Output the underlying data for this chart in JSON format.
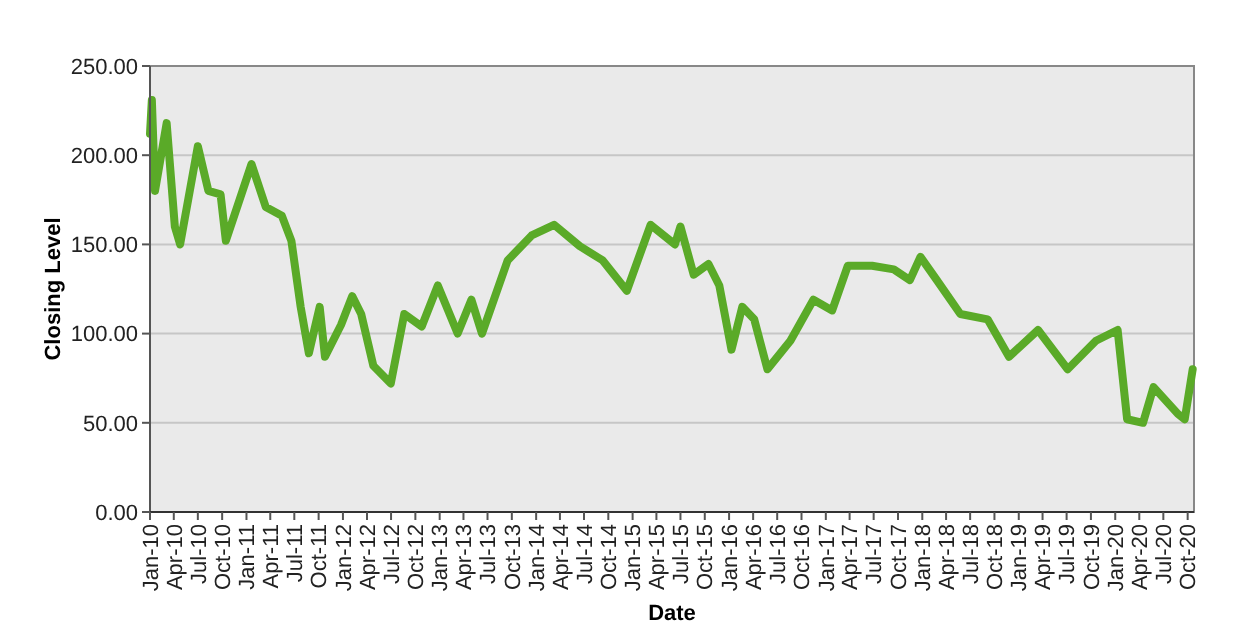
{
  "chart_data": {
    "type": "line",
    "xlabel": "Date",
    "ylabel": "Closing Level",
    "x": [
      "2010-01-01",
      "2010-01-08",
      "2010-01-20",
      "2010-03-05",
      "2010-04-05",
      "2010-04-25",
      "2010-07-01",
      "2010-08-10",
      "2010-09-25",
      "2010-10-15",
      "2011-01-20",
      "2011-03-15",
      "2011-05-15",
      "2011-06-20",
      "2011-07-25",
      "2011-08-25",
      "2011-10-05",
      "2011-10-25",
      "2011-12-25",
      "2012-02-05",
      "2012-03-10",
      "2012-04-25",
      "2012-06-30",
      "2012-08-20",
      "2012-10-25",
      "2012-12-25",
      "2013-03-10",
      "2013-05-01",
      "2013-06-10",
      "2013-09-15",
      "2013-12-15",
      "2014-03-10",
      "2014-06-15",
      "2014-09-10",
      "2014-12-10",
      "2015-03-10",
      "2015-06-10",
      "2015-07-01",
      "2015-08-20",
      "2015-10-15",
      "2015-11-25",
      "2016-01-10",
      "2016-02-20",
      "2016-04-05",
      "2016-05-25",
      "2016-08-20",
      "2016-11-15",
      "2017-01-25",
      "2017-03-25",
      "2017-06-25",
      "2017-09-15",
      "2017-11-15",
      "2017-12-25",
      "2018-02-25",
      "2018-05-25",
      "2018-09-05",
      "2018-11-25",
      "2019-03-15",
      "2019-07-05",
      "2019-10-20",
      "2020-01-10",
      "2020-02-15",
      "2020-04-15",
      "2020-05-25",
      "2020-08-25",
      "2020-09-20",
      "2020-10-20"
    ],
    "series": [
      {
        "color": "#5aaa28",
        "values": [
          212,
          231,
          180,
          218,
          160,
          150,
          205,
          180,
          178,
          152,
          195,
          171,
          166,
          152,
          115,
          89,
          115,
          87,
          105,
          121,
          111,
          82,
          72,
          111,
          104,
          127,
          100,
          119,
          100,
          141,
          155,
          161,
          149,
          141,
          124,
          161,
          150,
          160,
          133,
          139,
          127,
          91,
          115,
          108,
          80,
          96,
          119,
          113,
          138,
          138,
          136,
          130,
          143,
          130,
          111,
          108,
          87,
          102,
          80,
          96,
          102,
          52,
          50,
          70,
          55,
          52,
          80
        ]
      }
    ],
    "xlim": [
      "2010-01-01",
      "2020-10-25"
    ],
    "xticks": [
      {
        "value": "2010-01",
        "label": "Jan-10"
      },
      {
        "value": "2010-04",
        "label": "Apr-10"
      },
      {
        "value": "2010-07",
        "label": "Jul-10"
      },
      {
        "value": "2010-10",
        "label": "Oct-10"
      },
      {
        "value": "2011-01",
        "label": "Jan-11"
      },
      {
        "value": "2011-04",
        "label": "Apr-11"
      },
      {
        "value": "2011-07",
        "label": "Jul-11"
      },
      {
        "value": "2011-10",
        "label": "Oct-11"
      },
      {
        "value": "2012-01",
        "label": "Jan-12"
      },
      {
        "value": "2012-04",
        "label": "Apr-12"
      },
      {
        "value": "2012-07",
        "label": "Jul-12"
      },
      {
        "value": "2012-10",
        "label": "Oct-12"
      },
      {
        "value": "2013-01",
        "label": "Jan-13"
      },
      {
        "value": "2013-04",
        "label": "Apr-13"
      },
      {
        "value": "2013-07",
        "label": "Jul-13"
      },
      {
        "value": "2013-10",
        "label": "Oct-13"
      },
      {
        "value": "2014-01",
        "label": "Jan-14"
      },
      {
        "value": "2014-04",
        "label": "Apr-14"
      },
      {
        "value": "2014-07",
        "label": "Jul-14"
      },
      {
        "value": "2014-10",
        "label": "Oct-14"
      },
      {
        "value": "2015-01",
        "label": "Jan-15"
      },
      {
        "value": "2015-04",
        "label": "Apr-15"
      },
      {
        "value": "2015-07",
        "label": "Jul-15"
      },
      {
        "value": "2015-10",
        "label": "Oct-15"
      },
      {
        "value": "2016-01",
        "label": "Jan-16"
      },
      {
        "value": "2016-04",
        "label": "Apr-16"
      },
      {
        "value": "2016-07",
        "label": "Jul-16"
      },
      {
        "value": "2016-10",
        "label": "Oct-16"
      },
      {
        "value": "2017-01",
        "label": "Jan-17"
      },
      {
        "value": "2017-04",
        "label": "Apr-17"
      },
      {
        "value": "2017-07",
        "label": "Jul-17"
      },
      {
        "value": "2017-10",
        "label": "Oct-17"
      },
      {
        "value": "2018-01",
        "label": "Jan-18"
      },
      {
        "value": "2018-04",
        "label": "Apr-18"
      },
      {
        "value": "2018-07",
        "label": "Jul-18"
      },
      {
        "value": "2018-10",
        "label": "Oct-18"
      },
      {
        "value": "2019-01",
        "label": "Jan-19"
      },
      {
        "value": "2019-04",
        "label": "Apr-19"
      },
      {
        "value": "2019-07",
        "label": "Jul-19"
      },
      {
        "value": "2019-10",
        "label": "Oct-19"
      },
      {
        "value": "2020-01",
        "label": "Jan-20"
      },
      {
        "value": "2020-04",
        "label": "Apr-20"
      },
      {
        "value": "2020-07",
        "label": "Jul-20"
      },
      {
        "value": "2020-10",
        "label": "Oct-20"
      }
    ],
    "ylim": [
      0,
      250
    ],
    "yticks": [
      {
        "value": 0,
        "label": "0.00"
      },
      {
        "value": 50,
        "label": "50.00"
      },
      {
        "value": 100,
        "label": "100.00"
      },
      {
        "value": 150,
        "label": "150.00"
      },
      {
        "value": 200,
        "label": "200.00"
      },
      {
        "value": 250,
        "label": "250.00"
      }
    ],
    "grid": "y",
    "marker": "none",
    "line_style": "solid"
  }
}
